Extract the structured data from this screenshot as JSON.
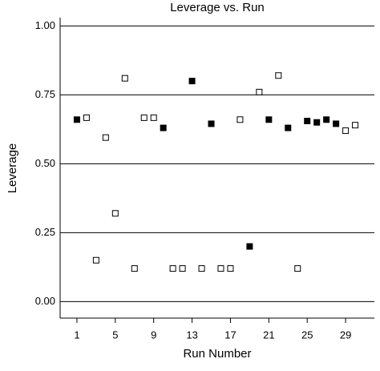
{
  "chart_data": {
    "type": "scatter",
    "title": "Leverage vs. Run",
    "x_label": "Run Number",
    "y_label": "Leverage",
    "xlim": [
      -0.75,
      32
    ],
    "xticks": [
      1,
      5,
      9,
      13,
      17,
      21,
      25,
      29
    ],
    "ylim": [
      -0.06,
      1.03
    ],
    "yticks": [
      {
        "value": 0,
        "label": "0.00"
      },
      {
        "value": 0.25,
        "label": "0.25"
      },
      {
        "value": 0.5,
        "label": "0.50"
      },
      {
        "value": 0.75,
        "label": "0.75"
      },
      {
        "value": 1,
        "label": "1.00"
      }
    ],
    "grid": true,
    "series": [
      {
        "marker": "filled",
        "color": "#000000",
        "x": [
          1,
          10,
          13,
          15,
          19,
          21,
          23,
          25,
          26,
          27,
          28
        ],
        "values": [
          0.66,
          0.63,
          0.8,
          0.645,
          0.2,
          0.66,
          0.63,
          0.655,
          0.65,
          0.66,
          0.645
        ]
      },
      {
        "marker": "open",
        "color": "#000000",
        "x": [
          2,
          3,
          4,
          5,
          6,
          7,
          8,
          9,
          11,
          12,
          14,
          16,
          17,
          18,
          20,
          22,
          24,
          29,
          30
        ],
        "values": [
          0.667,
          0.15,
          0.595,
          0.32,
          0.81,
          0.12,
          0.667,
          0.667,
          0.12,
          0.12,
          0.12,
          0.12,
          0.12,
          0.66,
          0.76,
          0.82,
          0.12,
          0.62,
          0.64
        ]
      }
    ]
  }
}
